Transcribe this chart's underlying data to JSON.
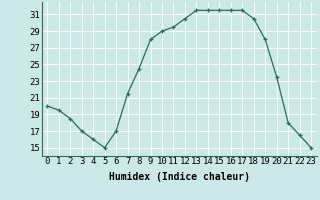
{
  "x": [
    0,
    1,
    2,
    3,
    4,
    5,
    6,
    7,
    8,
    9,
    10,
    11,
    12,
    13,
    14,
    15,
    16,
    17,
    18,
    19,
    20,
    21,
    22,
    23
  ],
  "y": [
    20,
    19.5,
    18.5,
    17,
    16,
    15,
    17,
    21.5,
    24.5,
    28,
    29,
    29.5,
    30.5,
    31.5,
    31.5,
    31.5,
    31.5,
    31.5,
    30.5,
    28,
    23.5,
    18,
    16.5,
    15
  ],
  "line_color": "#2e6b5e",
  "marker": "+",
  "marker_size": 3,
  "bg_color": "#cce8e8",
  "grid_color": "#ffffff",
  "xlabel": "Humidex (Indice chaleur)",
  "xlabel_fontsize": 7,
  "ylabel_ticks": [
    15,
    17,
    19,
    21,
    23,
    25,
    27,
    29,
    31
  ],
  "xlim": [
    -0.5,
    23.5
  ],
  "ylim": [
    14.0,
    32.5
  ],
  "tick_fontsize": 6.5
}
